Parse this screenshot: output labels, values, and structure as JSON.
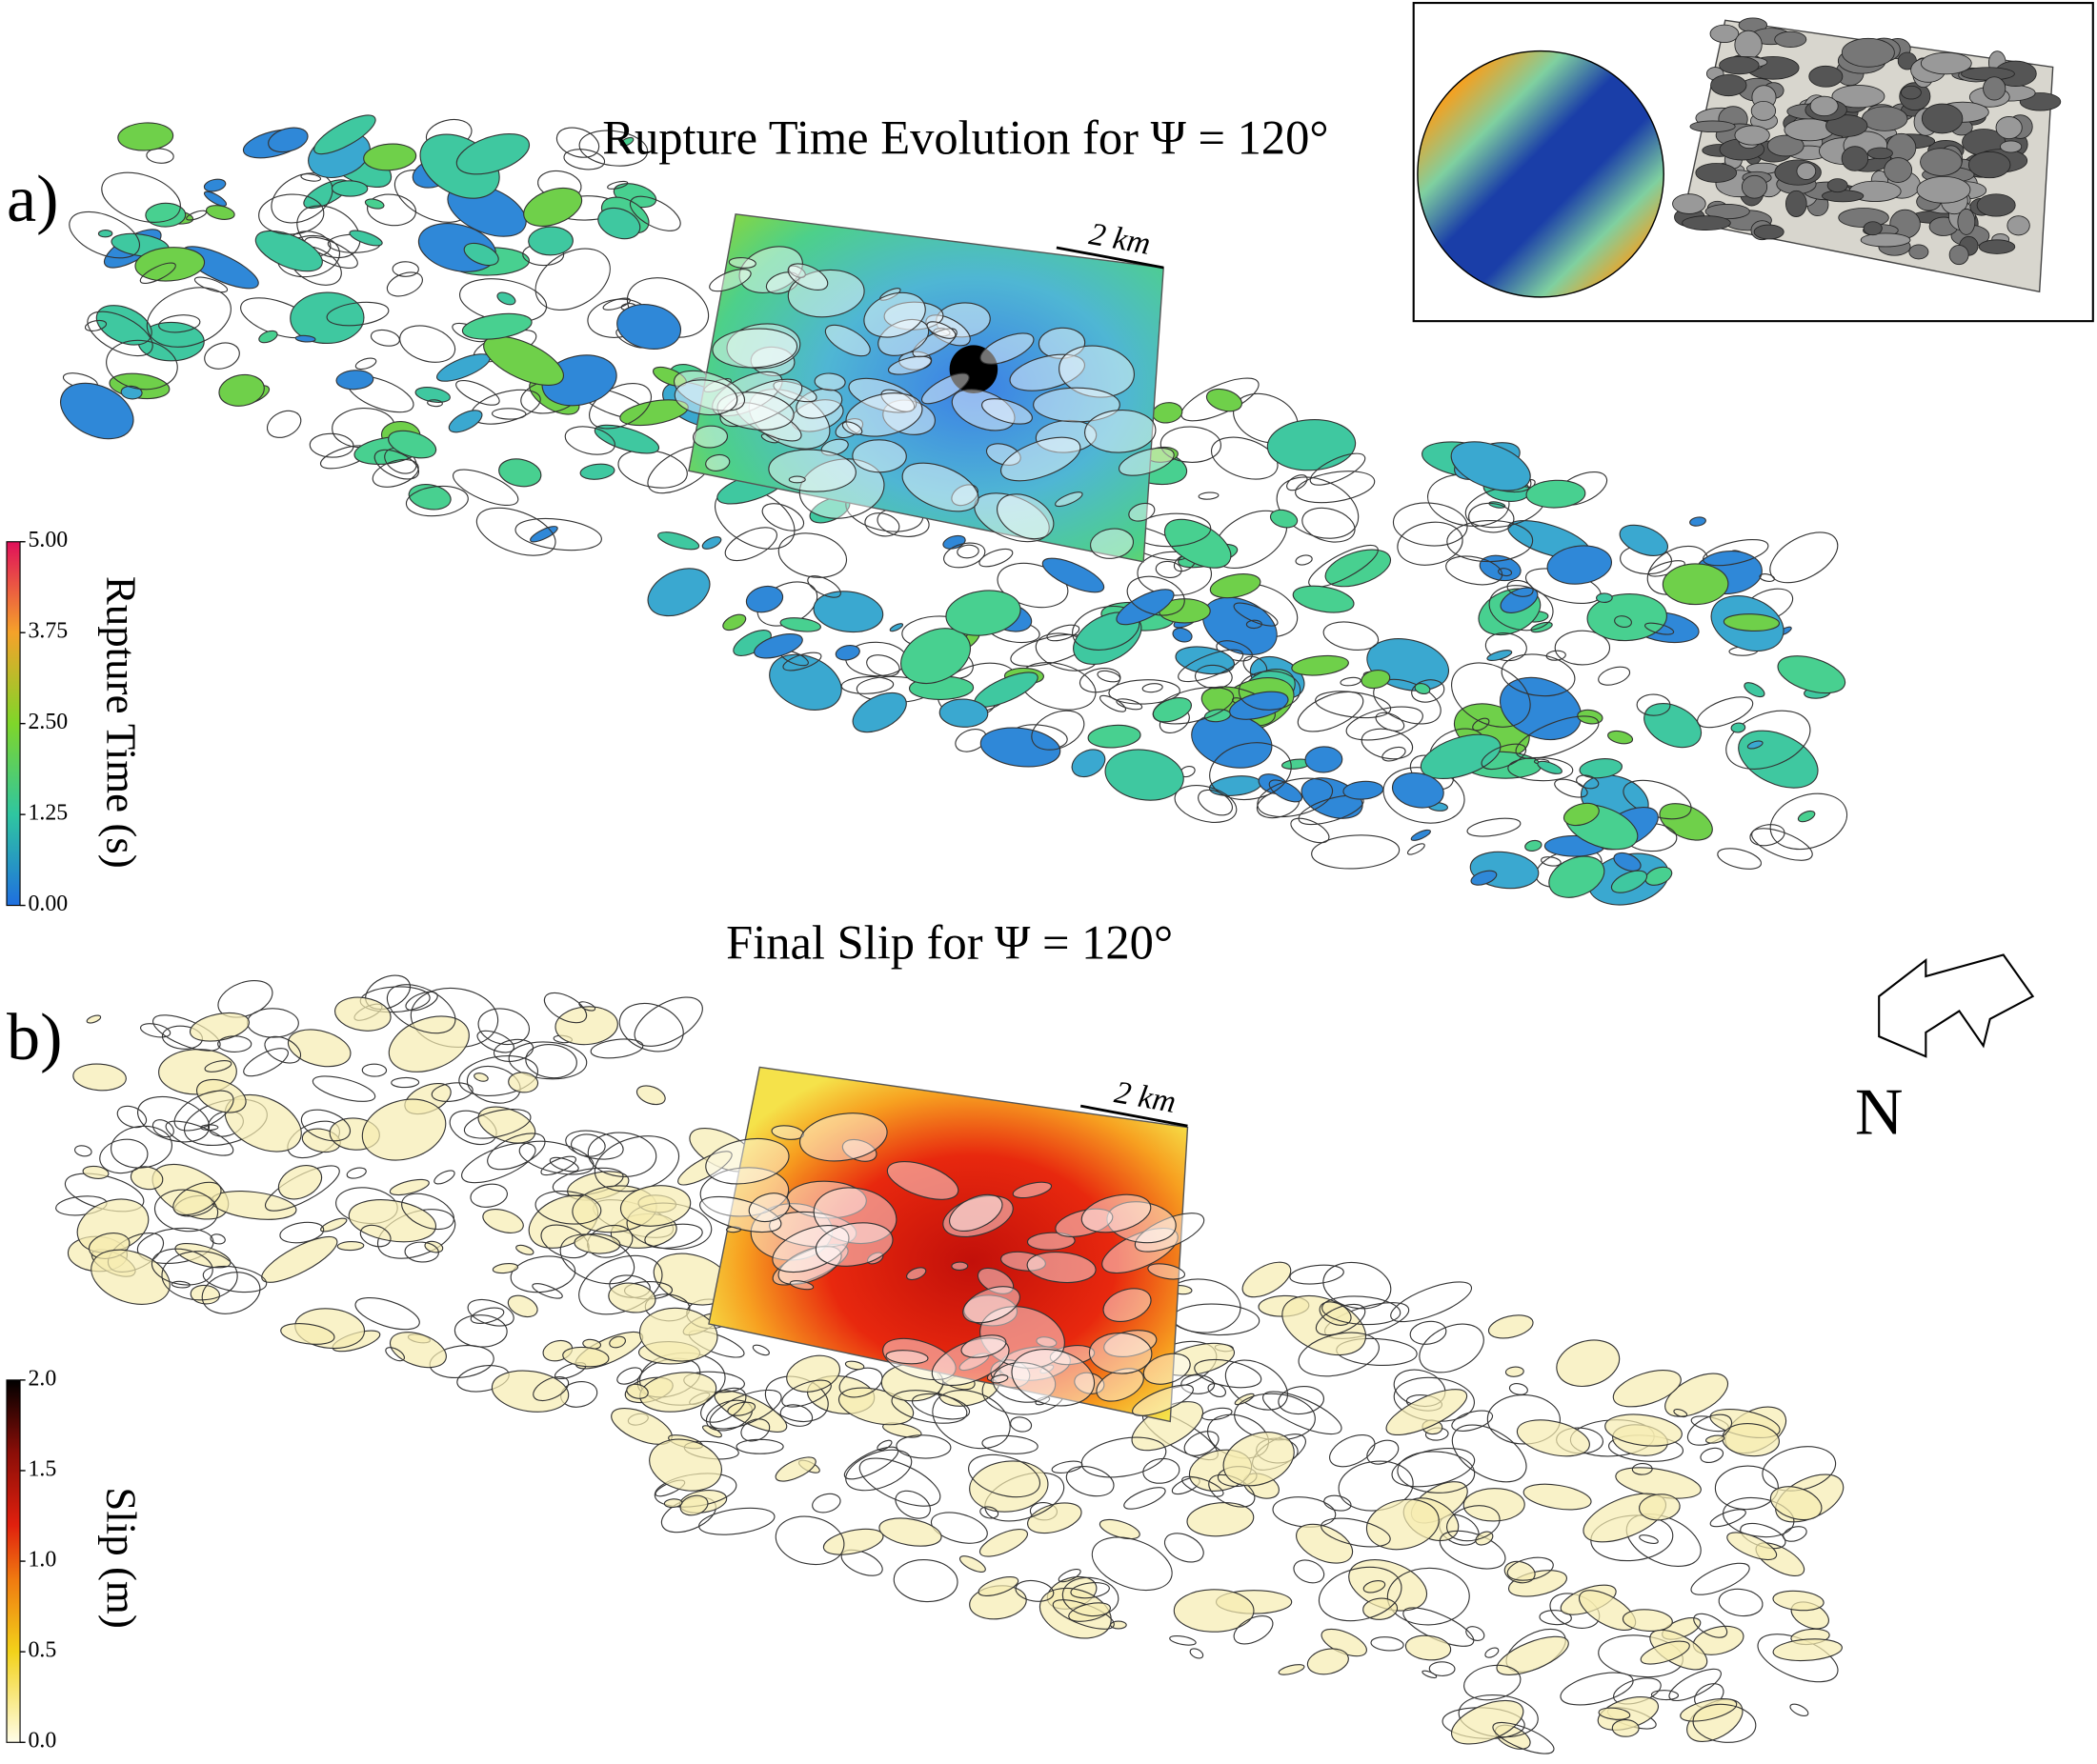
{
  "panels": [
    {
      "label": "a)",
      "title": "Rupture Time Evolution for Ψ = 120°",
      "scale_bar": "2 km",
      "colorbar": {
        "label": "Rupture Time (s)",
        "lim": [
          0,
          5
        ],
        "ticks": [
          {
            "value": 0,
            "label": "0.00"
          },
          {
            "value": 1.25,
            "label": "1.25"
          },
          {
            "value": 2.5,
            "label": "2.50"
          },
          {
            "value": 3.75,
            "label": "3.75"
          },
          {
            "value": 5,
            "label": "5.00"
          }
        ]
      }
    },
    {
      "label": "b)",
      "title": "Final Slip for Ψ = 120°",
      "scale_bar": "2 km",
      "colorbar": {
        "label": "Slip (m)",
        "lim": [
          0,
          2
        ],
        "ticks": [
          {
            "value": 0,
            "label": "0.0"
          },
          {
            "value": 0.5,
            "label": "0.5"
          },
          {
            "value": 1,
            "label": "1.0"
          },
          {
            "value": 1.5,
            "label": "1.5"
          },
          {
            "value": 2,
            "label": "2.0"
          }
        ]
      }
    }
  ],
  "north_arrow": "N"
}
